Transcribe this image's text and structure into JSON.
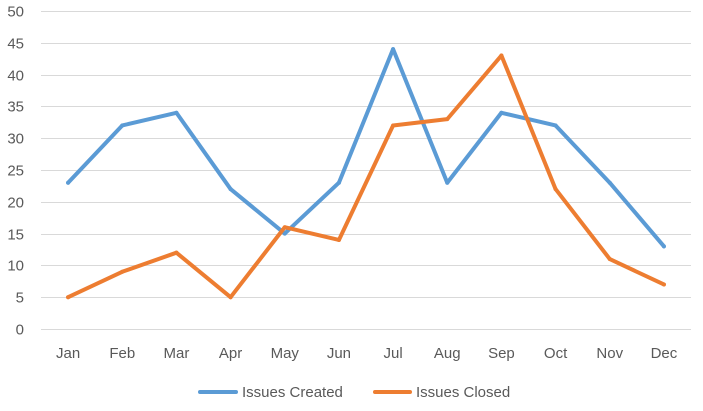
{
  "chart_data": {
    "type": "line",
    "title": "",
    "xlabel": "",
    "ylabel": "",
    "categories": [
      "Jan",
      "Feb",
      "Mar",
      "Apr",
      "May",
      "Jun",
      "Jul",
      "Aug",
      "Sep",
      "Oct",
      "Nov",
      "Dec"
    ],
    "ylim": [
      0,
      50
    ],
    "yticks": [
      0,
      5,
      10,
      15,
      20,
      25,
      30,
      35,
      40,
      45,
      50
    ],
    "grid": true,
    "legend_position": "bottom",
    "series": [
      {
        "name": "Issues Created",
        "color": "#5b9bd5",
        "values": [
          23,
          32,
          34,
          22,
          15,
          23,
          44,
          23,
          34,
          32,
          23,
          13
        ]
      },
      {
        "name": "Issues Closed",
        "color": "#ed7d31",
        "values": [
          5,
          9,
          12,
          5,
          16,
          14,
          32,
          33,
          43,
          22,
          11,
          7
        ]
      }
    ]
  }
}
